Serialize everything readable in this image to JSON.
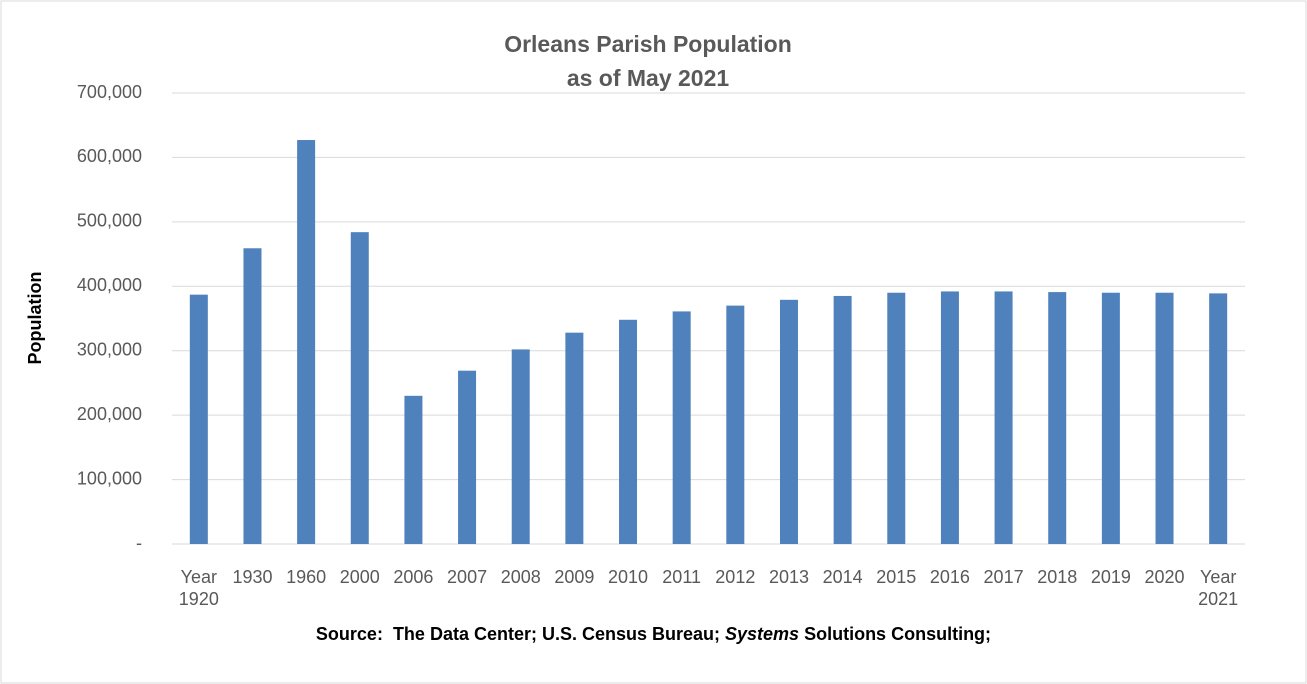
{
  "chart_data": {
    "type": "bar",
    "title": "Orleans Parish Population",
    "subtitle": "as of May 2021",
    "ylabel": "Population",
    "source": [
      "Source:  The Data Center; U.S. Census Bureau; ",
      "Systems",
      " Solutions Consulting;"
    ],
    "categories": [
      "Year 1920",
      "1930",
      "1960",
      "2000",
      "2006",
      "2007",
      "2008",
      "2009",
      "2010",
      "2011",
      "2012",
      "2013",
      "2014",
      "2015",
      "2016",
      "2017",
      "2018",
      "2019",
      "2020",
      "Year 2021"
    ],
    "values": [
      387000,
      459000,
      627000,
      484000,
      230000,
      269000,
      302000,
      328000,
      348000,
      361000,
      370000,
      379000,
      385000,
      390000,
      392000,
      392000,
      391000,
      390000,
      390000,
      389000
    ],
    "color": "#4f81bd",
    "ylim": [
      0,
      700000
    ],
    "yticks": [
      {
        "value": 0,
        "label": "-"
      },
      {
        "value": 100000,
        "label": "100,000"
      },
      {
        "value": 200000,
        "label": "200,000"
      },
      {
        "value": 300000,
        "label": "300,000"
      },
      {
        "value": 400000,
        "label": "400,000"
      },
      {
        "value": 500000,
        "label": "500,000"
      },
      {
        "value": 600000,
        "label": "600,000"
      },
      {
        "value": 700000,
        "label": "700,000"
      }
    ],
    "grid": true
  }
}
